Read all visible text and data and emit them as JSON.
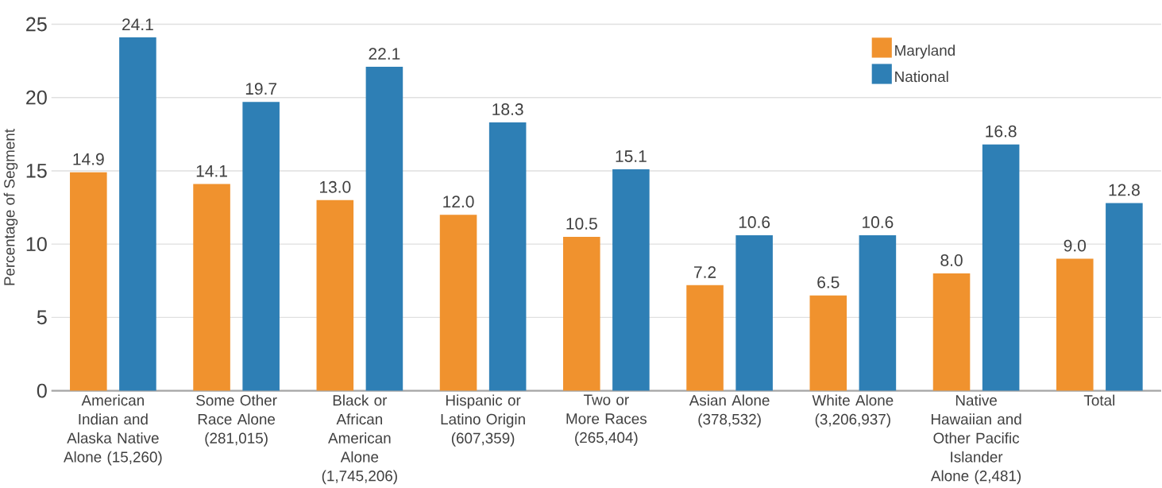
{
  "chart_data": {
    "type": "bar",
    "ylabel": "Percentage of Segment",
    "categories": [
      "American Indian and Alaska Native Alone (15,260)",
      "Some Other Race Alone (281,015)",
      "Black or African American Alone (1,745,206)",
      "Hispanic or Latino Origin (607,359)",
      "Two or More Races (265,404)",
      "Asian Alone (378,532)",
      "White Alone (3,206,937)",
      "Native Hawaiian and Other Pacific Islander Alone (2,481)",
      "Total"
    ],
    "series": [
      {
        "name": "Maryland",
        "color": "#f0922e",
        "values": [
          14.9,
          14.1,
          13.0,
          12.0,
          10.5,
          7.2,
          6.5,
          8.0,
          9.0
        ],
        "value_labels": [
          "14.9",
          "14.1",
          "13.0",
          "12.0",
          "10.5",
          "7.2",
          "6.5",
          "8.0",
          "9.0"
        ]
      },
      {
        "name": "National",
        "color": "#2e7fb5",
        "values": [
          24.1,
          19.7,
          22.1,
          18.3,
          15.1,
          10.6,
          10.6,
          16.8,
          12.8
        ],
        "value_labels": [
          "24.1",
          "19.7",
          "22.1",
          "18.3",
          "15.1",
          "10.6",
          "10.6",
          "16.8",
          "12.8"
        ]
      }
    ],
    "ylim": [
      0,
      25
    ],
    "yticks": [
      0,
      5,
      10,
      15,
      20,
      25
    ],
    "grid": "y",
    "legend": "top right"
  }
}
